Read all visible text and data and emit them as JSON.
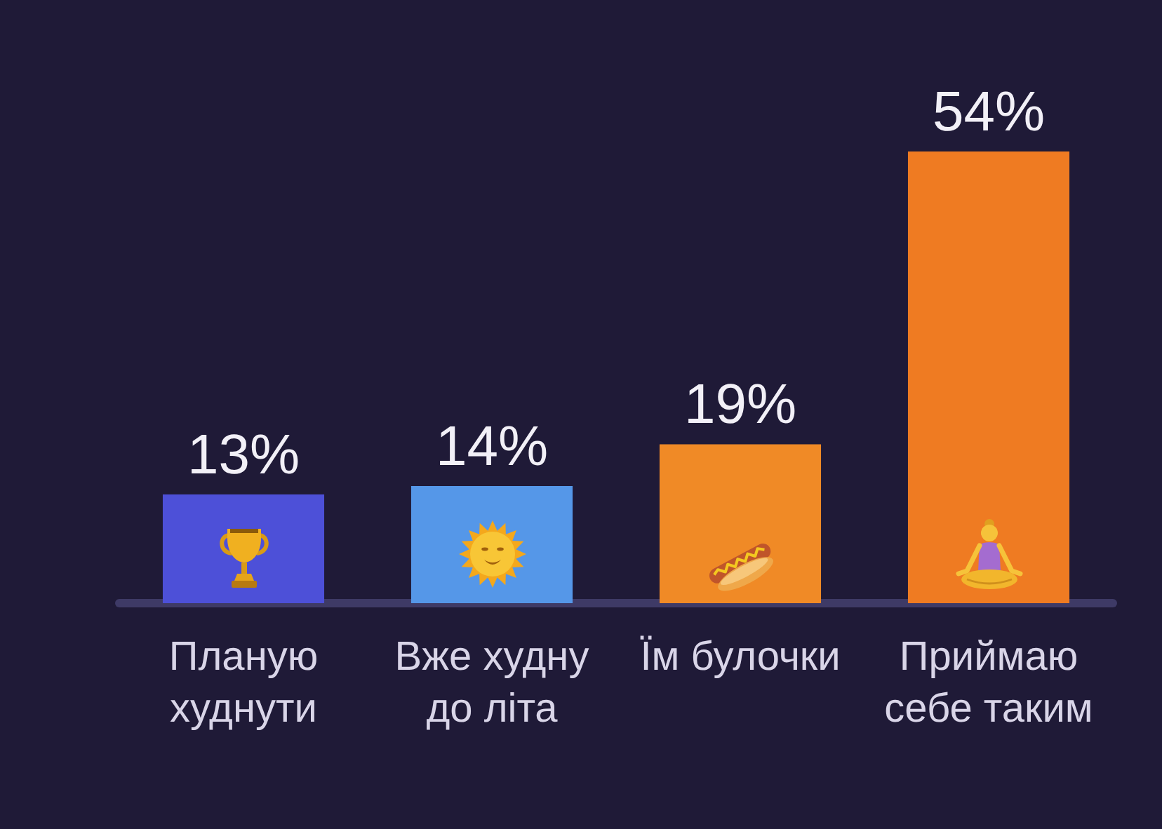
{
  "chart_data": {
    "type": "bar",
    "categories": [
      "Планую худнути",
      "Вже худну до літа",
      "Їм булочки",
      "Приймаю себе таким"
    ],
    "values": [
      13,
      14,
      19,
      54
    ],
    "value_labels": [
      "13%",
      "14%",
      "19%",
      "54%"
    ],
    "colors": [
      "#4d50d8",
      "#5597e8",
      "#f08a26",
      "#ef7b22"
    ]
  }
}
